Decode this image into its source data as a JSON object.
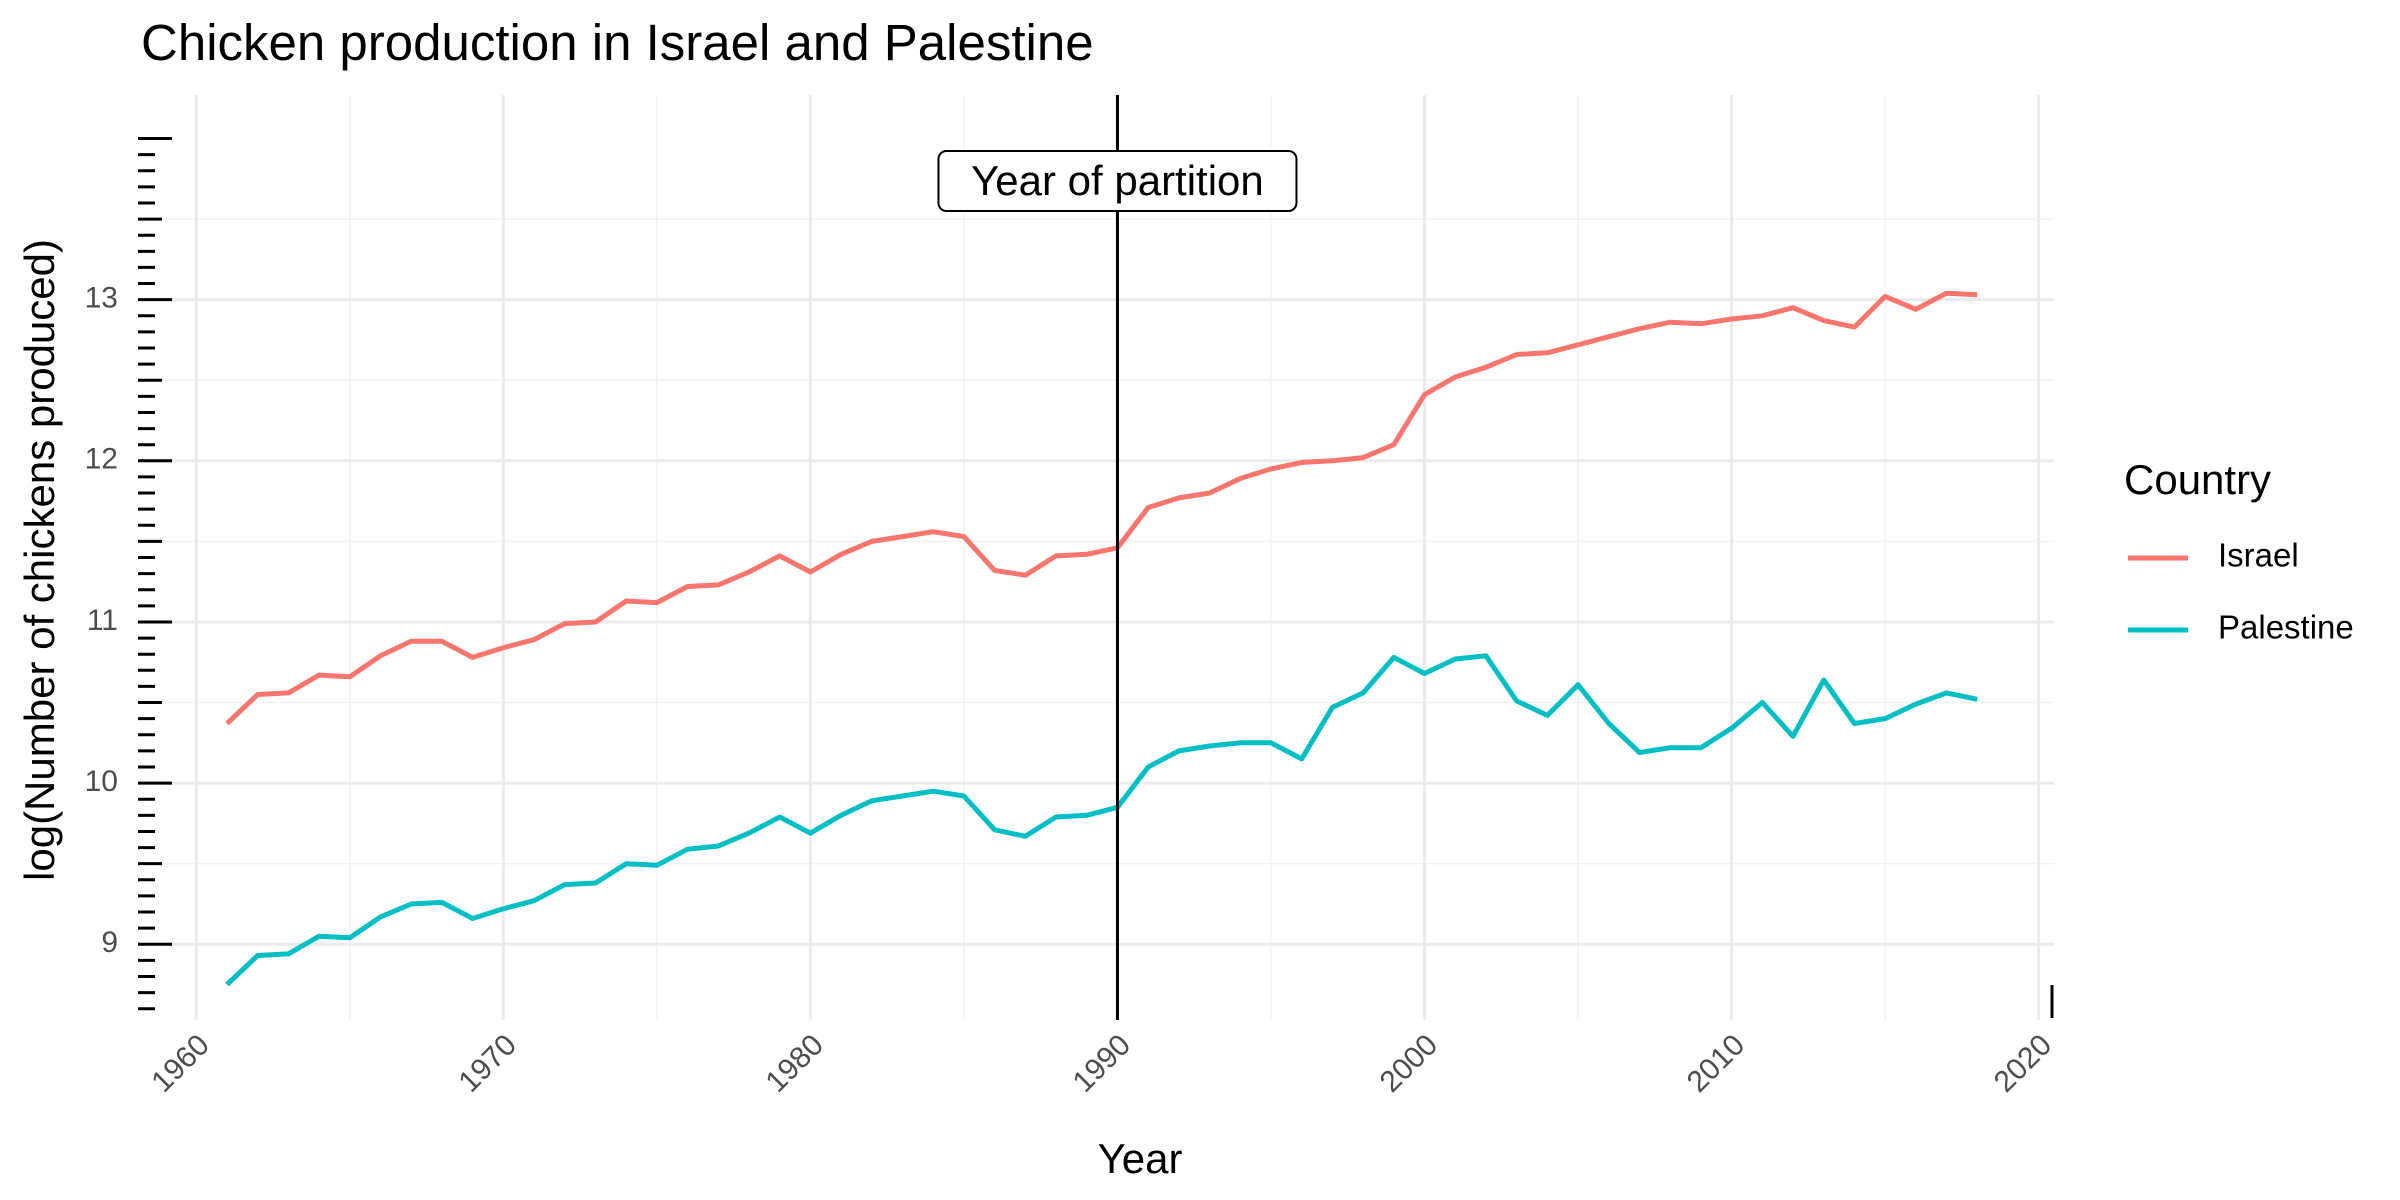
{
  "chart_data": {
    "type": "line",
    "title": "Chicken production in Israel and Palestine",
    "xlabel": "Year",
    "ylabel": "log(Number of chickens produced)",
    "xlim": [
      1958.2,
      2020.5
    ],
    "ylim": [
      8.53,
      14.27
    ],
    "x_ticks": [
      1960,
      1970,
      1980,
      1990,
      2000,
      2010,
      2020
    ],
    "y_ticks": [
      9,
      10,
      11,
      12,
      13
    ],
    "grid": true,
    "legend": {
      "title": "Country",
      "position": "right"
    },
    "annotation": {
      "x": 1990,
      "label": "Year of partition"
    },
    "x": [
      1961,
      1962,
      1963,
      1964,
      1965,
      1966,
      1967,
      1968,
      1969,
      1970,
      1971,
      1972,
      1973,
      1974,
      1975,
      1976,
      1977,
      1978,
      1979,
      1980,
      1981,
      1982,
      1983,
      1984,
      1985,
      1986,
      1987,
      1988,
      1989,
      1990,
      1991,
      1992,
      1993,
      1994,
      1995,
      1996,
      1997,
      1998,
      1999,
      2000,
      2001,
      2002,
      2003,
      2004,
      2005,
      2006,
      2007,
      2008,
      2009,
      2010,
      2011,
      2012,
      2013,
      2014,
      2015,
      2016,
      2017,
      2018
    ],
    "series": [
      {
        "name": "Israel",
        "color": "#F8766D",
        "values": [
          10.37,
          10.55,
          10.56,
          10.67,
          10.66,
          10.79,
          10.88,
          10.88,
          10.78,
          10.84,
          10.89,
          10.99,
          11.0,
          11.13,
          11.12,
          11.22,
          11.23,
          11.31,
          11.41,
          11.31,
          11.42,
          11.5,
          11.53,
          11.56,
          11.53,
          11.32,
          11.29,
          11.41,
          11.42,
          11.46,
          11.71,
          11.77,
          11.8,
          11.89,
          11.95,
          11.99,
          12.0,
          12.02,
          12.1,
          12.41,
          12.52,
          12.58,
          12.66,
          12.67,
          12.72,
          12.77,
          12.82,
          12.86,
          12.85,
          12.88,
          12.9,
          12.95,
          12.87,
          12.83,
          13.02,
          12.94,
          13.04,
          13.03
        ]
      },
      {
        "name": "Palestine",
        "color": "#00BFC4",
        "values": [
          8.75,
          8.93,
          8.94,
          9.05,
          9.04,
          9.17,
          9.25,
          9.26,
          9.16,
          9.22,
          9.27,
          9.37,
          9.38,
          9.5,
          9.49,
          9.59,
          9.61,
          9.69,
          9.79,
          9.69,
          9.8,
          9.89,
          9.92,
          9.95,
          9.92,
          9.71,
          9.67,
          9.79,
          9.8,
          9.85,
          10.1,
          10.2,
          10.23,
          10.25,
          10.25,
          10.15,
          10.47,
          10.56,
          10.78,
          10.68,
          10.77,
          10.79,
          10.51,
          10.42,
          10.61,
          10.37,
          10.19,
          10.22,
          10.22,
          10.34,
          10.5,
          10.29,
          10.64,
          10.37,
          10.4,
          10.49,
          10.56,
          10.52
        ]
      }
    ]
  }
}
